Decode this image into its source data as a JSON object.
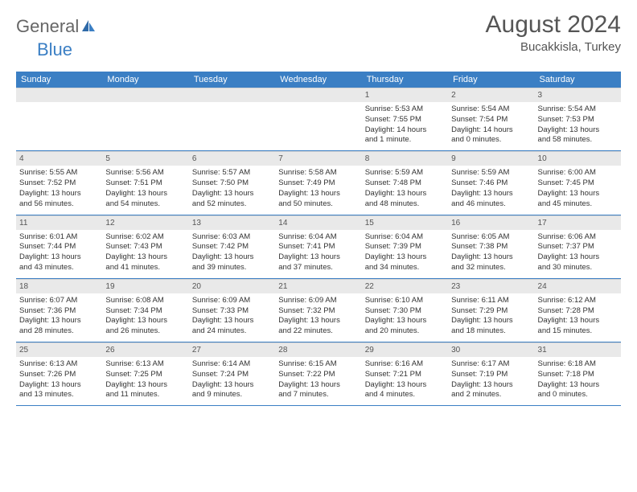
{
  "brand": {
    "part1": "General",
    "part2": "Blue"
  },
  "title": "August 2024",
  "location": "Bucakkisla, Turkey",
  "colors": {
    "accent": "#3b7fc4",
    "daynum_bg": "#e9e9e9",
    "text": "#333333",
    "header_text": "#555555"
  },
  "weekdays": [
    "Sunday",
    "Monday",
    "Tuesday",
    "Wednesday",
    "Thursday",
    "Friday",
    "Saturday"
  ],
  "weeks": [
    [
      null,
      null,
      null,
      null,
      {
        "n": "1",
        "sr": "Sunrise: 5:53 AM",
        "ss": "Sunset: 7:55 PM",
        "d1": "Daylight: 14 hours",
        "d2": "and 1 minute."
      },
      {
        "n": "2",
        "sr": "Sunrise: 5:54 AM",
        "ss": "Sunset: 7:54 PM",
        "d1": "Daylight: 14 hours",
        "d2": "and 0 minutes."
      },
      {
        "n": "3",
        "sr": "Sunrise: 5:54 AM",
        "ss": "Sunset: 7:53 PM",
        "d1": "Daylight: 13 hours",
        "d2": "and 58 minutes."
      }
    ],
    [
      {
        "n": "4",
        "sr": "Sunrise: 5:55 AM",
        "ss": "Sunset: 7:52 PM",
        "d1": "Daylight: 13 hours",
        "d2": "and 56 minutes."
      },
      {
        "n": "5",
        "sr": "Sunrise: 5:56 AM",
        "ss": "Sunset: 7:51 PM",
        "d1": "Daylight: 13 hours",
        "d2": "and 54 minutes."
      },
      {
        "n": "6",
        "sr": "Sunrise: 5:57 AM",
        "ss": "Sunset: 7:50 PM",
        "d1": "Daylight: 13 hours",
        "d2": "and 52 minutes."
      },
      {
        "n": "7",
        "sr": "Sunrise: 5:58 AM",
        "ss": "Sunset: 7:49 PM",
        "d1": "Daylight: 13 hours",
        "d2": "and 50 minutes."
      },
      {
        "n": "8",
        "sr": "Sunrise: 5:59 AM",
        "ss": "Sunset: 7:48 PM",
        "d1": "Daylight: 13 hours",
        "d2": "and 48 minutes."
      },
      {
        "n": "9",
        "sr": "Sunrise: 5:59 AM",
        "ss": "Sunset: 7:46 PM",
        "d1": "Daylight: 13 hours",
        "d2": "and 46 minutes."
      },
      {
        "n": "10",
        "sr": "Sunrise: 6:00 AM",
        "ss": "Sunset: 7:45 PM",
        "d1": "Daylight: 13 hours",
        "d2": "and 45 minutes."
      }
    ],
    [
      {
        "n": "11",
        "sr": "Sunrise: 6:01 AM",
        "ss": "Sunset: 7:44 PM",
        "d1": "Daylight: 13 hours",
        "d2": "and 43 minutes."
      },
      {
        "n": "12",
        "sr": "Sunrise: 6:02 AM",
        "ss": "Sunset: 7:43 PM",
        "d1": "Daylight: 13 hours",
        "d2": "and 41 minutes."
      },
      {
        "n": "13",
        "sr": "Sunrise: 6:03 AM",
        "ss": "Sunset: 7:42 PM",
        "d1": "Daylight: 13 hours",
        "d2": "and 39 minutes."
      },
      {
        "n": "14",
        "sr": "Sunrise: 6:04 AM",
        "ss": "Sunset: 7:41 PM",
        "d1": "Daylight: 13 hours",
        "d2": "and 37 minutes."
      },
      {
        "n": "15",
        "sr": "Sunrise: 6:04 AM",
        "ss": "Sunset: 7:39 PM",
        "d1": "Daylight: 13 hours",
        "d2": "and 34 minutes."
      },
      {
        "n": "16",
        "sr": "Sunrise: 6:05 AM",
        "ss": "Sunset: 7:38 PM",
        "d1": "Daylight: 13 hours",
        "d2": "and 32 minutes."
      },
      {
        "n": "17",
        "sr": "Sunrise: 6:06 AM",
        "ss": "Sunset: 7:37 PM",
        "d1": "Daylight: 13 hours",
        "d2": "and 30 minutes."
      }
    ],
    [
      {
        "n": "18",
        "sr": "Sunrise: 6:07 AM",
        "ss": "Sunset: 7:36 PM",
        "d1": "Daylight: 13 hours",
        "d2": "and 28 minutes."
      },
      {
        "n": "19",
        "sr": "Sunrise: 6:08 AM",
        "ss": "Sunset: 7:34 PM",
        "d1": "Daylight: 13 hours",
        "d2": "and 26 minutes."
      },
      {
        "n": "20",
        "sr": "Sunrise: 6:09 AM",
        "ss": "Sunset: 7:33 PM",
        "d1": "Daylight: 13 hours",
        "d2": "and 24 minutes."
      },
      {
        "n": "21",
        "sr": "Sunrise: 6:09 AM",
        "ss": "Sunset: 7:32 PM",
        "d1": "Daylight: 13 hours",
        "d2": "and 22 minutes."
      },
      {
        "n": "22",
        "sr": "Sunrise: 6:10 AM",
        "ss": "Sunset: 7:30 PM",
        "d1": "Daylight: 13 hours",
        "d2": "and 20 minutes."
      },
      {
        "n": "23",
        "sr": "Sunrise: 6:11 AM",
        "ss": "Sunset: 7:29 PM",
        "d1": "Daylight: 13 hours",
        "d2": "and 18 minutes."
      },
      {
        "n": "24",
        "sr": "Sunrise: 6:12 AM",
        "ss": "Sunset: 7:28 PM",
        "d1": "Daylight: 13 hours",
        "d2": "and 15 minutes."
      }
    ],
    [
      {
        "n": "25",
        "sr": "Sunrise: 6:13 AM",
        "ss": "Sunset: 7:26 PM",
        "d1": "Daylight: 13 hours",
        "d2": "and 13 minutes."
      },
      {
        "n": "26",
        "sr": "Sunrise: 6:13 AM",
        "ss": "Sunset: 7:25 PM",
        "d1": "Daylight: 13 hours",
        "d2": "and 11 minutes."
      },
      {
        "n": "27",
        "sr": "Sunrise: 6:14 AM",
        "ss": "Sunset: 7:24 PM",
        "d1": "Daylight: 13 hours",
        "d2": "and 9 minutes."
      },
      {
        "n": "28",
        "sr": "Sunrise: 6:15 AM",
        "ss": "Sunset: 7:22 PM",
        "d1": "Daylight: 13 hours",
        "d2": "and 7 minutes."
      },
      {
        "n": "29",
        "sr": "Sunrise: 6:16 AM",
        "ss": "Sunset: 7:21 PM",
        "d1": "Daylight: 13 hours",
        "d2": "and 4 minutes."
      },
      {
        "n": "30",
        "sr": "Sunrise: 6:17 AM",
        "ss": "Sunset: 7:19 PM",
        "d1": "Daylight: 13 hours",
        "d2": "and 2 minutes."
      },
      {
        "n": "31",
        "sr": "Sunrise: 6:18 AM",
        "ss": "Sunset: 7:18 PM",
        "d1": "Daylight: 13 hours",
        "d2": "and 0 minutes."
      }
    ]
  ]
}
